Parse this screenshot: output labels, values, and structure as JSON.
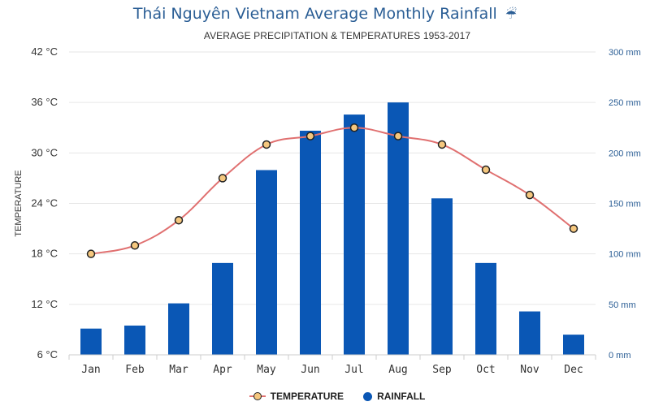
{
  "colors": {
    "bar": "#0a57b5",
    "line": "#e07070",
    "marker_fill": "#f5c77e",
    "marker_stroke": "#222222",
    "title": "#2b5e95",
    "right_axis": "#2b5e95",
    "grid": "#e6e6e6"
  },
  "icons": {
    "title_icon": "umbrella-icon"
  },
  "chart_data": {
    "type": "bar",
    "title": "Thái Nguyên Vietnam Average Monthly Rainfall",
    "title_icon_glyph": "☔",
    "subtitle": "AVERAGE PRECIPITATION & TEMPERATURES 1953-2017",
    "categories": [
      "Jan",
      "Feb",
      "Mar",
      "Apr",
      "May",
      "Jun",
      "Jul",
      "Aug",
      "Sep",
      "Oct",
      "Nov",
      "Dec"
    ],
    "ylabel_left": "TEMPERATURE",
    "ylim_left": [
      6,
      42
    ],
    "yticks_left": [
      "6 °C",
      "12 °C",
      "18 °C",
      "24 °C",
      "30 °C",
      "36 °C",
      "42 °C"
    ],
    "yticks_left_values": [
      6,
      12,
      18,
      24,
      30,
      36,
      42
    ],
    "ylim_right": [
      0,
      300
    ],
    "yticks_right": [
      "0 mm",
      "50 mm",
      "100 mm",
      "150 mm",
      "200 mm",
      "250 mm",
      "300 mm"
    ],
    "yticks_right_values": [
      0,
      50,
      100,
      150,
      200,
      250,
      300
    ],
    "grid": true,
    "legend_position": "bottom-center",
    "series": [
      {
        "name": "TEMPERATURE",
        "type": "line",
        "axis": "left",
        "values": [
          18,
          19,
          22,
          27,
          31,
          32,
          33,
          32,
          31,
          28,
          25,
          21
        ]
      },
      {
        "name": "RAINFALL",
        "type": "bar",
        "axis": "right",
        "values": [
          26,
          29,
          51,
          91,
          183,
          222,
          238,
          250,
          155,
          91,
          43,
          20
        ]
      }
    ]
  }
}
